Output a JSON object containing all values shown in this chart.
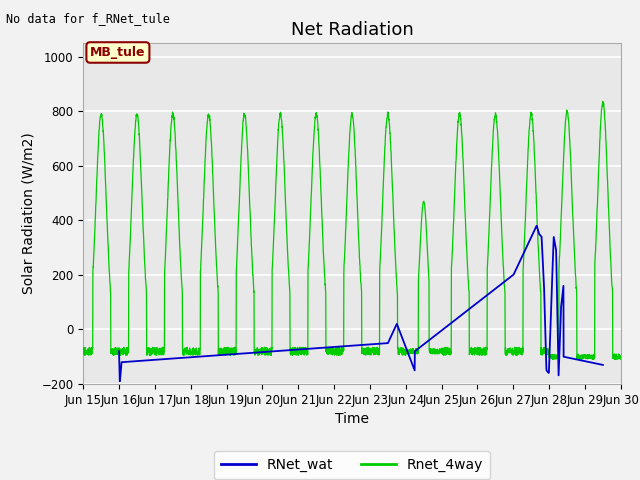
{
  "title": "Net Radiation",
  "ylabel": "Solar Radiation (W/m2)",
  "xlabel": "Time",
  "ylim": [
    -200,
    1050
  ],
  "xlim": [
    0,
    15
  ],
  "x_tick_labels": [
    "Jun 15",
    "Jun 16",
    "Jun 17",
    "Jun 18",
    "Jun 19",
    "Jun 20",
    "Jun 21",
    "Jun 22",
    "Jun 23",
    "Jun 24",
    "Jun 25",
    "Jun 26",
    "Jun 27",
    "Jun 28",
    "Jun 29",
    "Jun 30"
  ],
  "no_data_text": "No data for f_RNet_tule",
  "legend_box_label": "MB_tule",
  "legend_box_facecolor": "#FFFFCC",
  "legend_box_edgecolor": "#8B0000",
  "legend_box_textcolor": "#8B0000",
  "line_blue_color": "#0000CC",
  "line_green_color": "#00CC00",
  "line_blue_label": "RNet_wat",
  "line_green_label": "Rnet_4way",
  "plot_bg_color": "#E8E8E8",
  "fig_bg_color": "#F2F2F2",
  "grid_color": "#FFFFFF",
  "title_fontsize": 13,
  "axis_label_fontsize": 10,
  "tick_label_fontsize": 8.5
}
